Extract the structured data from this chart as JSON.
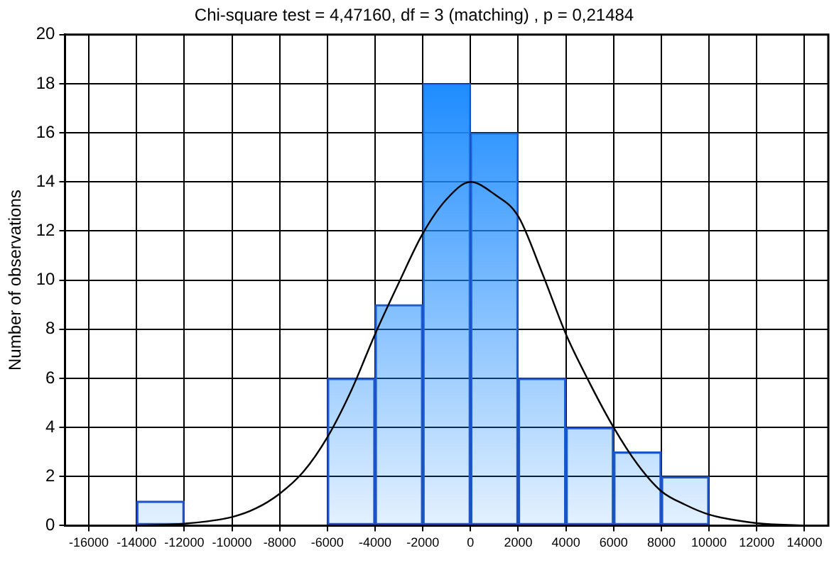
{
  "chart_data": {
    "type": "histogram",
    "title": "Chi-square test = 4,47160, df = 3 (matching) , p = 0,21484",
    "ylabel": "Number of observations",
    "bins": [
      -14000,
      -12000,
      -10000,
      -8000,
      -6000,
      -4000,
      -2000,
      0,
      2000,
      4000,
      6000,
      8000,
      10000
    ],
    "values": [
      1,
      0,
      0,
      0,
      6,
      9,
      18,
      16,
      6,
      4,
      3,
      2
    ],
    "color": "#1e8cff",
    "series": [
      {
        "type": "line",
        "color": "#000000",
        "x": [
          -14000,
          -12000,
          -10000,
          -9000,
          -8000,
          -7000,
          -6000,
          -5000,
          -4000,
          -3000,
          -2000,
          -1000,
          0,
          1000,
          2000,
          3000,
          4000,
          5000,
          6000,
          7000,
          8000,
          9000,
          10000,
          12000,
          14000
        ],
        "values": [
          0,
          0.08,
          0.35,
          0.7,
          1.3,
          2.2,
          3.6,
          5.5,
          7.8,
          9.9,
          11.9,
          13.3,
          14,
          13.5,
          12.6,
          10.3,
          7.8,
          5.8,
          4,
          2.5,
          1.4,
          0.85,
          0.45,
          0.1,
          0
        ]
      }
    ],
    "xlim": [
      -17000,
      15000
    ],
    "xticks": [
      -16000,
      -14000,
      -12000,
      -10000,
      -8000,
      -6000,
      -4000,
      -2000,
      0,
      2000,
      4000,
      6000,
      8000,
      10000,
      12000,
      14000
    ],
    "ylim": [
      0,
      20
    ],
    "yticks": [
      0,
      2,
      4,
      6,
      8,
      10,
      12,
      14,
      16,
      18,
      20
    ],
    "grid": true,
    "legend": false,
    "marker": "none",
    "line_style": "solid"
  }
}
